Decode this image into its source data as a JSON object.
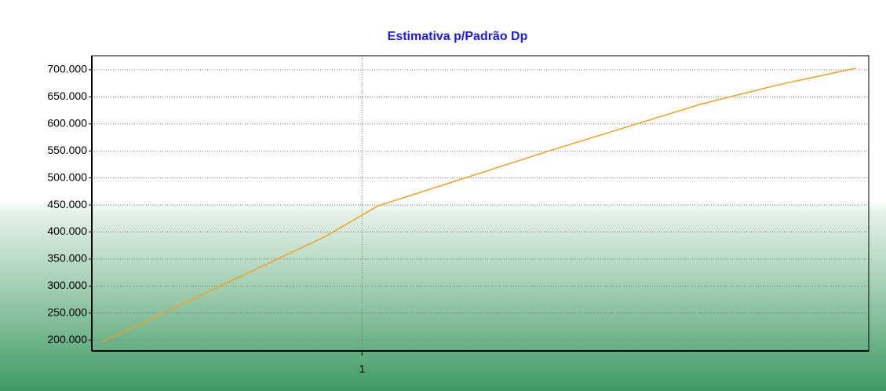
{
  "chart_data": {
    "type": "line",
    "title": "Estimativa p/Padrão Dp",
    "x": [
      0,
      0.86,
      1.06,
      1.72,
      2.3,
      2.6,
      2.9
    ],
    "series": [
      {
        "color": "#f0a020",
        "values": [
          197000,
          392000,
          448000,
          550000,
          636000,
          672000,
          703000
        ]
      }
    ],
    "xlim": [
      -0.04,
      2.95
    ],
    "xticks": [
      1
    ],
    "ylim": [
      180000,
      726000
    ],
    "yticks": [
      {
        "value": 200000,
        "label": "200.000"
      },
      {
        "value": 250000,
        "label": "250.000"
      },
      {
        "value": 300000,
        "label": "300.000"
      },
      {
        "value": 350000,
        "label": "350.000"
      },
      {
        "value": 400000,
        "label": "400.000"
      },
      {
        "value": 450000,
        "label": "450.000"
      },
      {
        "value": 500000,
        "label": "500.000"
      },
      {
        "value": 550000,
        "label": "550.000"
      },
      {
        "value": 600000,
        "label": "600.000"
      },
      {
        "value": 650000,
        "label": "650.000"
      },
      {
        "value": 700000,
        "label": "700.000"
      }
    ],
    "grid": true
  }
}
